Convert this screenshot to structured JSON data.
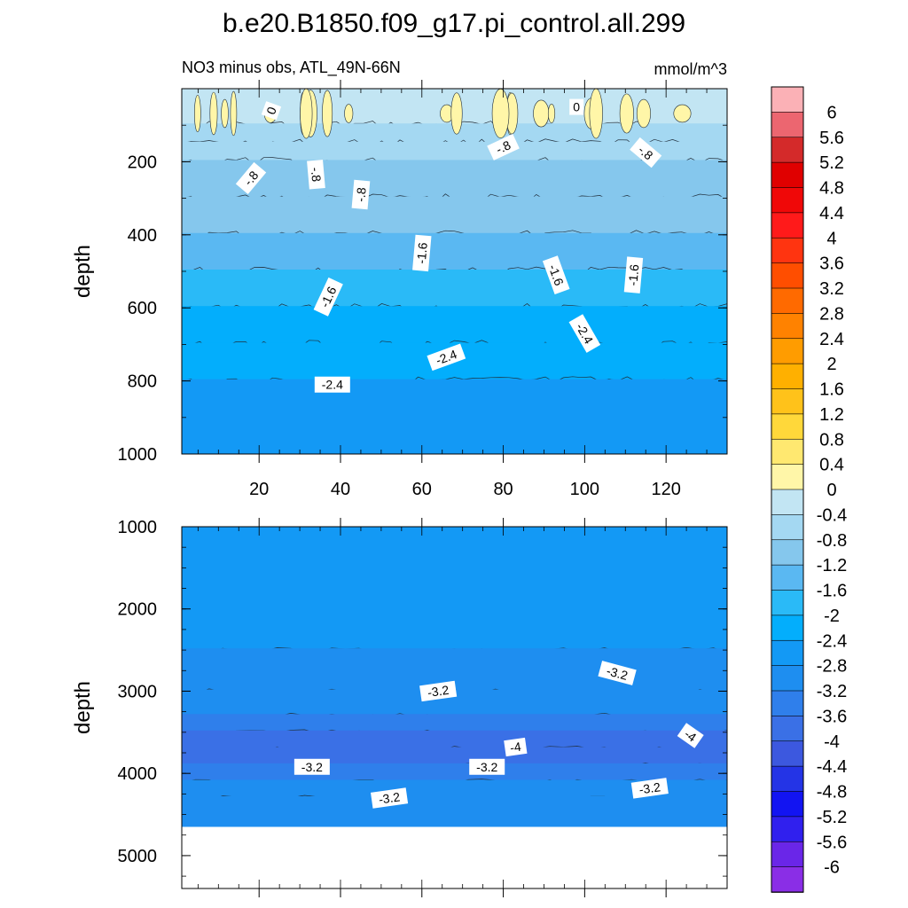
{
  "title": "b.e20.B1850.f09_g17.pi_control.all.299",
  "subtitle_left": "NO3 minus obs, ATL_49N-66N",
  "subtitle_right": "mmol/m^3",
  "chart_data": [
    {
      "type": "heatmap",
      "panel": "upper",
      "ylabel": "depth",
      "xlim": [
        1,
        135
      ],
      "ylim": [
        1000,
        0
      ],
      "x_ticks": [
        "20",
        "40",
        "60",
        "80",
        "100",
        "120"
      ],
      "y_ticks": [
        "200",
        "400",
        "600",
        "800",
        "1000"
      ],
      "bands": [
        {
          "depth": 0,
          "value": -0.2
        },
        {
          "depth": 100,
          "value": -0.6
        },
        {
          "depth": 150,
          "value": -0.6
        },
        {
          "depth": 200,
          "value": -1.0
        },
        {
          "depth": 300,
          "value": -1.0
        },
        {
          "depth": 400,
          "value": -1.4
        },
        {
          "depth": 500,
          "value": -1.8
        },
        {
          "depth": 600,
          "value": -2.2
        },
        {
          "depth": 700,
          "value": -2.2
        },
        {
          "depth": 800,
          "value": -2.6
        },
        {
          "depth": 1000,
          "value": -2.6
        }
      ],
      "contour_labels": [
        {
          "text": "0",
          "x": 23,
          "depth": 60,
          "angle": -70
        },
        {
          "text": "0",
          "x": 98,
          "depth": 50,
          "angle": 0
        },
        {
          "text": "-.8",
          "x": 18,
          "depth": 245,
          "angle": -50
        },
        {
          "text": "-.8",
          "x": 34,
          "depth": 235,
          "angle": 85
        },
        {
          "text": "-.8",
          "x": 45,
          "depth": 290,
          "angle": -85
        },
        {
          "text": "-.8",
          "x": 80,
          "depth": 160,
          "angle": -25
        },
        {
          "text": "-.8",
          "x": 115,
          "depth": 175,
          "angle": 40
        },
        {
          "text": "-1.6",
          "x": 60,
          "depth": 450,
          "angle": -85
        },
        {
          "text": "-1.6",
          "x": 93,
          "depth": 510,
          "angle": 70
        },
        {
          "text": "-1.6",
          "x": 112,
          "depth": 510,
          "angle": -85
        },
        {
          "text": "-1.6",
          "x": 37,
          "depth": 570,
          "angle": -65
        },
        {
          "text": "-2.4",
          "x": 100,
          "depth": 670,
          "angle": 60
        },
        {
          "text": "-2.4",
          "x": 66,
          "depth": 735,
          "angle": -20
        },
        {
          "text": "-2.4",
          "x": 38,
          "depth": 810,
          "angle": 0
        }
      ]
    },
    {
      "type": "heatmap",
      "panel": "lower",
      "ylabel": "depth",
      "xlim": [
        1,
        135
      ],
      "ylim": [
        5400,
        1000
      ],
      "y_ticks": [
        "1000",
        "2000",
        "3000",
        "4000",
        "5000"
      ],
      "data_bottom_depth": 4650,
      "bands": [
        {
          "depth": 1000,
          "value": -2.6
        },
        {
          "depth": 2500,
          "value": -2.8
        },
        {
          "depth": 3000,
          "value": -3.0
        },
        {
          "depth": 3300,
          "value": -3.4
        },
        {
          "depth": 3500,
          "value": -3.8
        },
        {
          "depth": 3700,
          "value": -3.8
        },
        {
          "depth": 3900,
          "value": -3.4
        },
        {
          "depth": 4100,
          "value": -3.0
        },
        {
          "depth": 4300,
          "value": -3.2
        },
        {
          "depth": 4650,
          "value": -3.4
        }
      ],
      "contour_labels": [
        {
          "text": "-3.2",
          "x": 64,
          "depth": 3000,
          "angle": -8
        },
        {
          "text": "-3.2",
          "x": 108,
          "depth": 2780,
          "angle": 15
        },
        {
          "text": "-4",
          "x": 83,
          "depth": 3680,
          "angle": -8
        },
        {
          "text": "-4",
          "x": 126,
          "depth": 3540,
          "angle": 35
        },
        {
          "text": "-3.2",
          "x": 33,
          "depth": 3920,
          "angle": 0
        },
        {
          "text": "-3.2",
          "x": 76,
          "depth": 3920,
          "angle": 0
        },
        {
          "text": "-3.2",
          "x": 52,
          "depth": 4300,
          "angle": -8
        },
        {
          "text": "-3.2",
          "x": 116,
          "depth": 4180,
          "angle": -8
        }
      ]
    }
  ],
  "colorbar": {
    "labels": [
      "6",
      "5.6",
      "5.2",
      "4.8",
      "4.4",
      "4",
      "3.6",
      "3.2",
      "2.8",
      "2.4",
      "2",
      "1.6",
      "1.2",
      "0.8",
      "0.4",
      "0",
      "-0.4",
      "-0.8",
      "-1.2",
      "-1.6",
      "-2",
      "-2.4",
      "-2.8",
      "-3.2",
      "-3.6",
      "-4",
      "-4.4",
      "-4.8",
      "-5.2",
      "-5.6",
      "-6"
    ],
    "colors": [
      "#fbb1b6",
      "#ec6670",
      "#d42a2a",
      "#e00000",
      "#f00808",
      "#ff1a1a",
      "#ff3410",
      "#ff4e00",
      "#ff6a00",
      "#ff8200",
      "#ff9c00",
      "#ffb000",
      "#ffc21a",
      "#ffd83a",
      "#ffe870",
      "#fff6a8",
      "#c2e5f3",
      "#a4d8f2",
      "#85c7ed",
      "#5ab8f2",
      "#2abaf7",
      "#03aefc",
      "#1399f5",
      "#1e8ef0",
      "#2f7feb",
      "#3a70e6",
      "#3c58df",
      "#2434e6",
      "#1214f2",
      "#3020ee",
      "#6a26e8",
      "#8a2ee6"
    ]
  }
}
